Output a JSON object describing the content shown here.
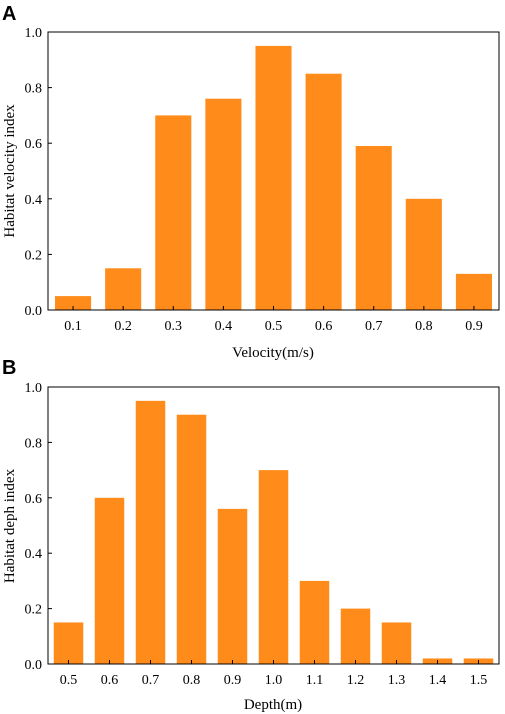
{
  "chart_data": [
    {
      "type": "bar",
      "panel_label": "A",
      "categories": [
        "0.1",
        "0.2",
        "0.3",
        "0.4",
        "0.5",
        "0.6",
        "0.7",
        "0.8",
        "0.9"
      ],
      "values": [
        0.05,
        0.15,
        0.7,
        0.76,
        0.95,
        0.85,
        0.59,
        0.4,
        0.13
      ],
      "xlabel": "Velocity(m/s)",
      "ylabel": "Habitat velocity index",
      "ylim": [
        0,
        1.0
      ],
      "yticks": [
        "0.0",
        "0.2",
        "0.4",
        "0.6",
        "0.8",
        "1.0"
      ],
      "bar_color": "#ff8c1a",
      "grid": false
    },
    {
      "type": "bar",
      "panel_label": "B",
      "categories": [
        "0.5",
        "0.6",
        "0.7",
        "0.8",
        "0.9",
        "1.0",
        "1.1",
        "1.2",
        "1.3",
        "1.4",
        "1.5"
      ],
      "values": [
        0.15,
        0.6,
        0.95,
        0.9,
        0.56,
        0.7,
        0.3,
        0.2,
        0.15,
        0.02,
        0.02
      ],
      "xlabel": "Depth(m)",
      "ylabel": "Habitat deph index",
      "ylim": [
        0,
        1.0
      ],
      "yticks": [
        "0.0",
        "0.2",
        "0.4",
        "0.6",
        "0.8",
        "1.0"
      ],
      "bar_color": "#ff8c1a",
      "grid": false
    }
  ]
}
